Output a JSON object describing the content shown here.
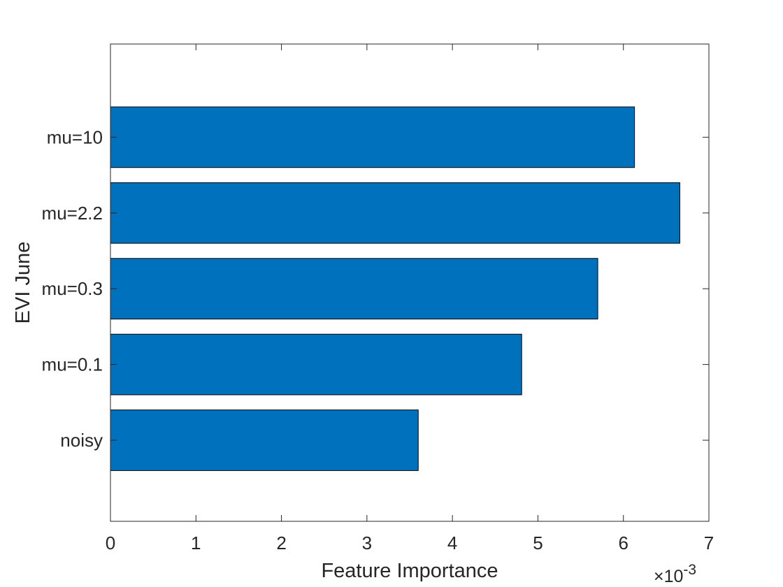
{
  "chart_data": {
    "type": "bar",
    "orientation": "horizontal",
    "categories": [
      "noisy",
      "mu=0.1",
      "mu=0.3",
      "mu=2.2",
      "mu=10"
    ],
    "values": [
      0.0036,
      0.00481,
      0.0057,
      0.00666,
      0.00613
    ],
    "xlabel": "Feature Importance",
    "ylabel": "EVI June",
    "xlim": [
      0,
      0.007
    ],
    "xticks": [
      0,
      1,
      2,
      3,
      4,
      5,
      6,
      7
    ],
    "x_multiplier_base": "×10",
    "x_multiplier_exponent": "-3",
    "bar_color": "#0072BD",
    "grid": false
  }
}
